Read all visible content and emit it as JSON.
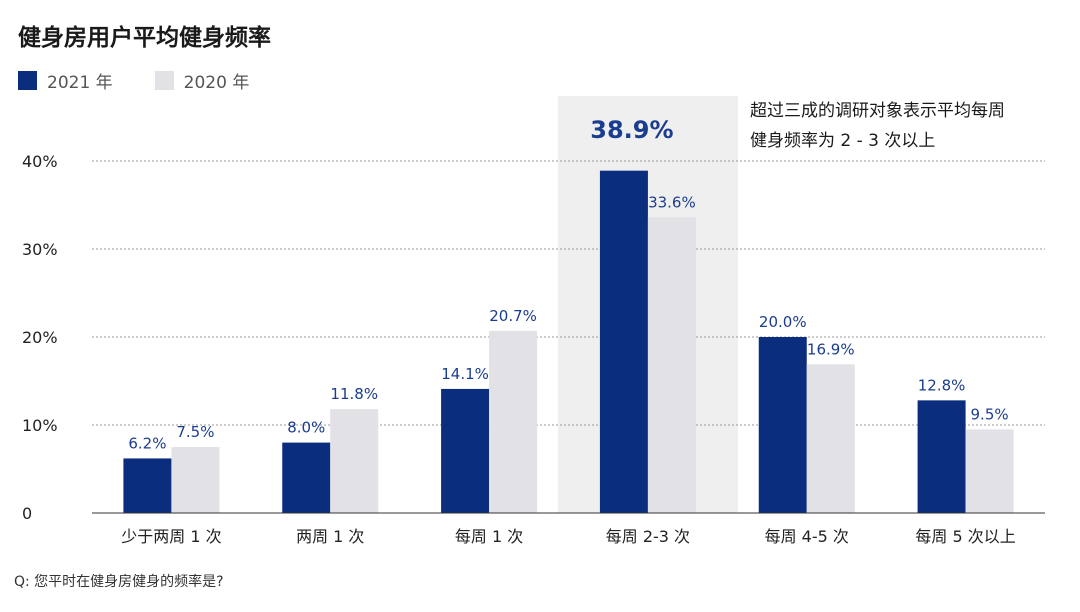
{
  "title": "健身房用户平均健身频率",
  "footnote": "Q: 您平时在健身房健身的频率是?",
  "legend": [
    {
      "label": "2021 年",
      "color": "#0b2d7e"
    },
    {
      "label": "2020 年",
      "color": "#e1e1e6"
    }
  ],
  "annotation": {
    "highlight_value": "38.9%",
    "note_line1": "超过三成的调研对象表示平均每周",
    "note_line2": "健身频率为 2 - 3 次以上",
    "highlight_category": "每周 2-3 次"
  },
  "chart_data": {
    "type": "bar",
    "categories": [
      "少于两周 1 次",
      "两周 1 次",
      "每周 1 次",
      "每周 2-3 次",
      "每周 4-5 次",
      "每周 5 次以上"
    ],
    "series": [
      {
        "name": "2021 年",
        "values": [
          6.2,
          8.0,
          14.1,
          38.9,
          20.0,
          12.8
        ],
        "labels": [
          "6.2%",
          "8.0%",
          "14.1%",
          "",
          "20.0%",
          "12.8%"
        ],
        "color": "#0b2d7e"
      },
      {
        "name": "2020 年",
        "values": [
          7.5,
          11.8,
          20.7,
          33.6,
          16.9,
          9.5
        ],
        "labels": [
          "7.5%",
          "11.8%",
          "20.7%",
          "33.6%",
          "16.9%",
          "9.5%"
        ],
        "color": "#e1e1e6"
      }
    ],
    "yticks": [
      0,
      10,
      20,
      30,
      40
    ],
    "ytick_labels": [
      "0",
      "10%",
      "20%",
      "30%",
      "40%"
    ],
    "ylim": [
      0,
      40
    ],
    "grid": true,
    "label_color": "#1b3d8f"
  }
}
